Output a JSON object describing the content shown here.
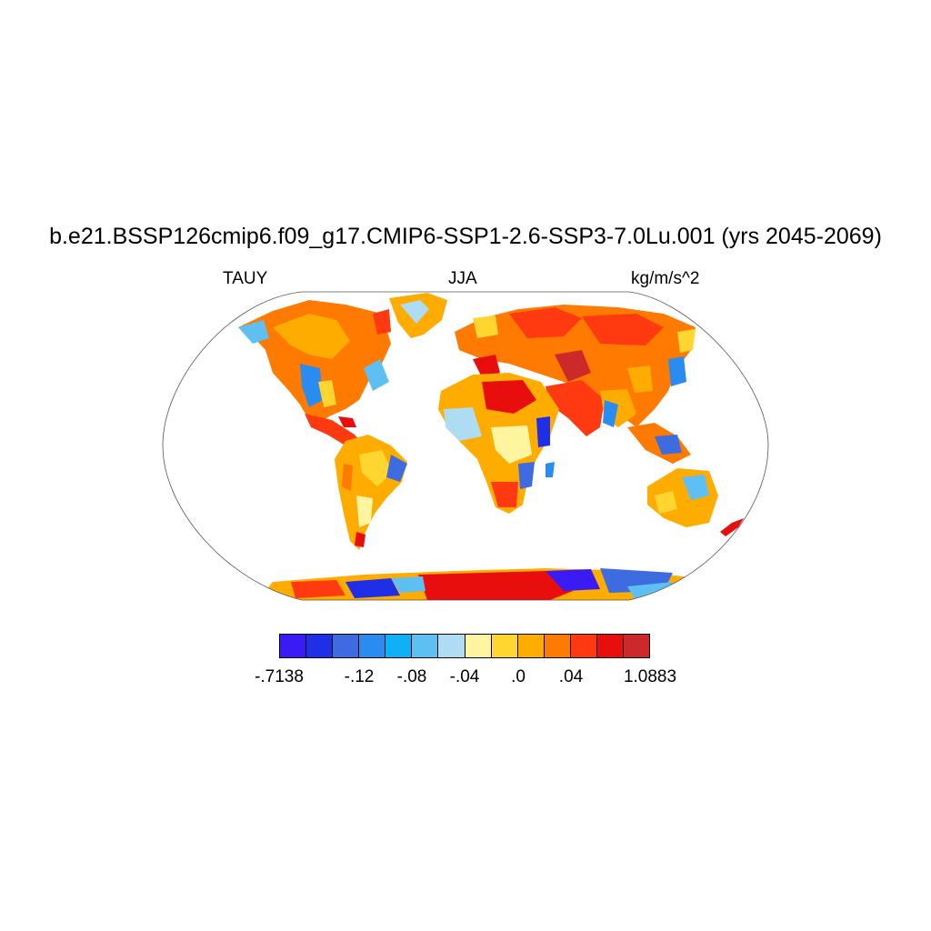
{
  "title": "b.e21.BSSP126cmip6.f09_g17.CMIP6-SSP1-2.6-SSP3-7.0Lu.001 (yrs 2045-2069)",
  "subtitle_left": "TAUY",
  "subtitle_center": "JJA",
  "subtitle_right": "kg/m/s^2",
  "colorbar": {
    "colors": [
      "#3b1bf5",
      "#1f2fe8",
      "#3d6be0",
      "#2a8cf0",
      "#0fb0f5",
      "#5ec0f2",
      "#aedcf2",
      "#fff5a0",
      "#ffd630",
      "#ffac00",
      "#ff7a00",
      "#ff3a10",
      "#e80e0e",
      "#cc2a2a"
    ],
    "labels": [
      "-.7138",
      "-.12",
      "-.08",
      "-.04",
      ".0",
      ".04",
      "1.0883"
    ]
  },
  "map": {
    "projection": "Robinson",
    "variable": "TAUY",
    "season": "JJA",
    "land_only": true
  }
}
